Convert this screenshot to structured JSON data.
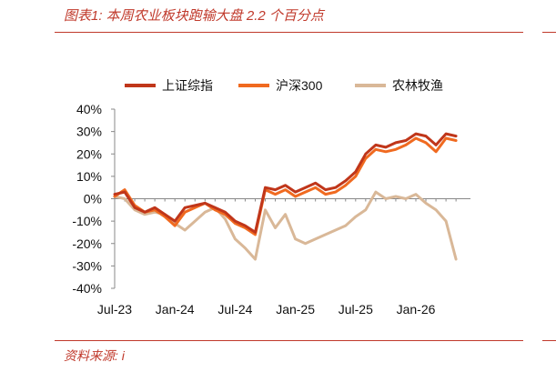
{
  "header": {
    "title": "图表1:  本周农业板块跑输大盘 2.2 个百分点"
  },
  "footer": {
    "source": "资料来源:  i"
  },
  "chart_data": {
    "type": "line",
    "title": "图表1:  本周农业板块跑输大盘 2.2 个百分点",
    "xlabel": "",
    "ylabel": "",
    "ylim": [
      -40,
      40
    ],
    "yticks": [
      40,
      30,
      20,
      10,
      0,
      -10,
      -20,
      -30,
      -40
    ],
    "ytick_labels": [
      "40%",
      "30%",
      "20%",
      "10%",
      "0%",
      "-10%",
      "-20%",
      "-30%",
      "-40%"
    ],
    "x_ticks": [
      "Jul-23",
      "Jan-24",
      "Jul-24",
      "Jan-25",
      "Jul-25",
      "Jan-26"
    ],
    "x_start": "2023-07",
    "x_end": "2026-05",
    "legend_position": "top",
    "grid": false,
    "x": [
      "2023-07",
      "2023-08",
      "2023-09",
      "2023-10",
      "2023-11",
      "2023-12",
      "2024-01",
      "2024-02",
      "2024-03",
      "2024-04",
      "2024-05",
      "2024-06",
      "2024-07",
      "2024-08",
      "2024-09",
      "2024-10",
      "2024-11",
      "2024-12",
      "2025-01",
      "2025-02",
      "2025-03",
      "2025-04",
      "2025-05",
      "2025-06",
      "2025-07",
      "2025-08",
      "2025-09",
      "2025-10",
      "2025-11",
      "2025-12",
      "2026-01",
      "2026-02",
      "2026-03",
      "2026-04",
      "2026-05"
    ],
    "series": [
      {
        "name": "上证综指",
        "color": "#c0361a",
        "values": [
          2,
          3,
          -4,
          -6,
          -4,
          -7,
          -10,
          -4,
          -3,
          -2,
          -4,
          -6,
          -10,
          -12,
          -15,
          5,
          4,
          6,
          3,
          5,
          7,
          4,
          5,
          8,
          12,
          20,
          24,
          23,
          25,
          26,
          29,
          28,
          24,
          29,
          28
        ]
      },
      {
        "name": "沪深300",
        "color": "#f06a20",
        "values": [
          1,
          4,
          -3,
          -6,
          -5,
          -8,
          -12,
          -6,
          -4,
          -2,
          -5,
          -7,
          -11,
          -13,
          -16,
          4,
          2,
          4,
          1,
          3,
          5,
          2,
          3,
          6,
          10,
          18,
          22,
          21,
          22,
          24,
          27,
          25,
          21,
          27,
          26
        ]
      },
      {
        "name": "农林牧渔",
        "color": "#d9b898",
        "values": [
          1,
          0,
          -5,
          -7,
          -6,
          -7,
          -11,
          -14,
          -10,
          -6,
          -4,
          -9,
          -18,
          -22,
          -27,
          -5,
          -13,
          -7,
          -18,
          -20,
          -18,
          -16,
          -14,
          -12,
          -8,
          -5,
          3,
          0,
          1,
          0,
          2,
          -2,
          -5,
          -10,
          -27
        ]
      }
    ]
  }
}
